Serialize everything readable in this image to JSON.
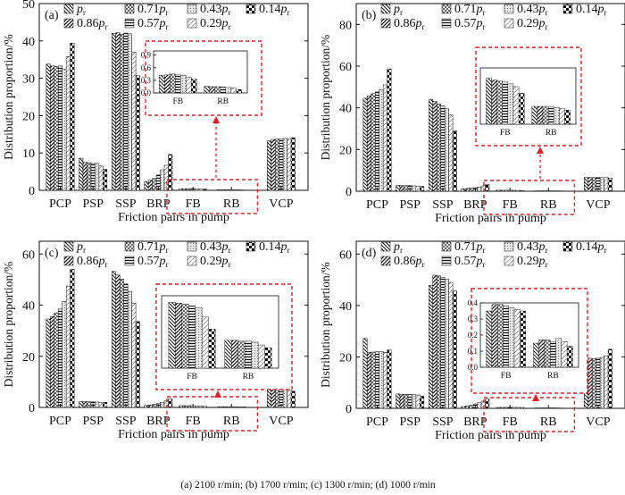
{
  "caption": "(a) 2100 r/min; (b) 1700 r/min; (c) 1300 r/min; (d) 1000 r/min",
  "legend": [
    {
      "key": "pr",
      "base": "p",
      "sub": "r",
      "coef": "",
      "pattern": "p0"
    },
    {
      "key": "0.86pr",
      "base": "p",
      "sub": "r",
      "coef": "0.86",
      "pattern": "p1"
    },
    {
      "key": "0.71pr",
      "base": "p",
      "sub": "r",
      "coef": "0.71",
      "pattern": "p2"
    },
    {
      "key": "0.57pr",
      "base": "p",
      "sub": "r",
      "coef": "0.57",
      "pattern": "p3"
    },
    {
      "key": "0.43pr",
      "base": "p",
      "sub": "r",
      "coef": "0.43",
      "pattern": "p4"
    },
    {
      "key": "0.29pr",
      "base": "p",
      "sub": "r",
      "coef": "0.29",
      "pattern": "p5"
    },
    {
      "key": "0.14pr",
      "base": "p",
      "sub": "r",
      "coef": "0.14",
      "pattern": "p6"
    }
  ],
  "chart_data": [
    {
      "panel": "(a)",
      "type": "bar",
      "xlabel": "Friction pairs in pump",
      "ylabel": "Distribution proportion/%",
      "ylim": [
        0,
        50
      ],
      "yticks": [
        0,
        10,
        20,
        30,
        40,
        50
      ],
      "categories": [
        "PCP",
        "PSP",
        "SSP",
        "BRP",
        "FB",
        "RB",
        "VCP"
      ],
      "highlight": [
        "FB",
        "RB"
      ],
      "series": [
        {
          "name": "pr",
          "values": [
            33.8,
            8.6,
            42.0,
            2.3,
            0.42,
            0.16,
            13.2
          ]
        },
        {
          "name": "0.86pr",
          "values": [
            33.3,
            7.5,
            42.2,
            2.7,
            0.43,
            0.15,
            13.6
          ]
        },
        {
          "name": "0.71pr",
          "values": [
            33.2,
            7.4,
            41.8,
            3.2,
            0.45,
            0.15,
            13.7
          ]
        },
        {
          "name": "0.57pr",
          "values": [
            33.3,
            7.2,
            42.1,
            4.1,
            0.43,
            0.14,
            13.8
          ]
        },
        {
          "name": "0.43pr",
          "values": [
            32.4,
            7.2,
            41.9,
            5.5,
            0.42,
            0.13,
            13.9
          ]
        },
        {
          "name": "0.29pr",
          "values": [
            35.8,
            6.5,
            37.0,
            6.7,
            0.37,
            0.12,
            13.7
          ]
        },
        {
          "name": "0.14pr",
          "values": [
            39.4,
            5.6,
            30.7,
            9.6,
            0.33,
            0.08,
            14.1
          ]
        }
      ],
      "inset": {
        "categories": [
          "FB",
          "RB"
        ],
        "ylim": [
          0,
          1.0
        ],
        "yticks": [
          "0.9",
          "0.6",
          "0.3",
          "0.0"
        ],
        "tickvals": [
          0.9,
          0.6,
          0.3,
          0.0
        ]
      }
    },
    {
      "panel": "(b)",
      "type": "bar",
      "xlabel": "Friction pairs in pump",
      "ylabel": "Distribution proportion/%",
      "ylim": [
        0,
        90
      ],
      "yticks": [
        0,
        20,
        40,
        60,
        80
      ],
      "categories": [
        "PCP",
        "PSP",
        "SSP",
        "BRP",
        "FB",
        "RB",
        "VCP"
      ],
      "highlight": [
        "FB",
        "RB"
      ],
      "series": [
        {
          "name": "pr",
          "values": [
            44.6,
            2.8,
            44.1,
            1.2,
            0.49,
            0.19,
            6.6
          ]
        },
        {
          "name": "0.86pr",
          "values": [
            45.8,
            2.7,
            43.1,
            1.3,
            0.47,
            0.19,
            6.6
          ]
        },
        {
          "name": "0.71pr",
          "values": [
            46.8,
            2.7,
            41.9,
            1.5,
            0.46,
            0.19,
            6.6
          ]
        },
        {
          "name": "0.57pr",
          "values": [
            47.6,
            2.7,
            40.9,
            1.7,
            0.45,
            0.19,
            6.6
          ]
        },
        {
          "name": "0.43pr",
          "values": [
            48.7,
            2.6,
            39.6,
            2.0,
            0.43,
            0.18,
            6.5
          ]
        },
        {
          "name": "0.29pr",
          "values": [
            51.0,
            2.5,
            36.6,
            2.6,
            0.4,
            0.17,
            6.5
          ]
        },
        {
          "name": "0.14pr",
          "values": [
            58.7,
            2.3,
            28.9,
            3.2,
            0.33,
            0.15,
            6.3
          ]
        }
      ],
      "inset": {
        "categories": [
          "FB",
          "RB"
        ],
        "ylim": [
          0,
          0.6
        ],
        "yticks": [],
        "tickvals": []
      }
    },
    {
      "panel": "(c)",
      "type": "bar",
      "xlabel": "Friction pairs in pump",
      "ylabel": "Distribution proportion/%",
      "ylim": [
        0,
        65
      ],
      "yticks": [
        0,
        20,
        40,
        60
      ],
      "categories": [
        "PCP",
        "PSP",
        "SSP",
        "BRP",
        "FB",
        "RB",
        "VCP"
      ],
      "highlight": [
        "FB",
        "RB"
      ],
      "series": [
        {
          "name": "pr",
          "values": [
            34.6,
            2.3,
            53.2,
            0.8,
            0.71,
            0.3,
            7.7
          ]
        },
        {
          "name": "0.86pr",
          "values": [
            35.6,
            2.3,
            51.8,
            1.0,
            0.7,
            0.3,
            7.6
          ]
        },
        {
          "name": "0.71pr",
          "values": [
            37.0,
            2.2,
            50.2,
            1.2,
            0.69,
            0.29,
            7.5
          ]
        },
        {
          "name": "0.57pr",
          "values": [
            38.5,
            2.2,
            48.3,
            1.6,
            0.67,
            0.29,
            7.4
          ]
        },
        {
          "name": "0.43pr",
          "values": [
            41.5,
            2.1,
            45.4,
            2.0,
            0.65,
            0.28,
            7.2
          ]
        },
        {
          "name": "0.29pr",
          "values": [
            47.5,
            2.0,
            40.8,
            2.6,
            0.55,
            0.25,
            7.0
          ]
        },
        {
          "name": "0.14pr",
          "values": [
            54.1,
            2.0,
            33.6,
            3.3,
            0.42,
            0.22,
            6.4
          ]
        }
      ],
      "inset": {
        "categories": [
          "FB",
          "RB"
        ],
        "ylim": [
          0,
          0.78
        ],
        "yticks": [],
        "tickvals": []
      }
    },
    {
      "panel": "(d)",
      "type": "bar",
      "xlabel": "Friction pairs in pump",
      "ylabel": "Distribution proportion/%",
      "ylim": [
        0,
        65
      ],
      "yticks": [
        0,
        20,
        40,
        60
      ],
      "categories": [
        "PCP",
        "PSP",
        "SSP",
        "BRP",
        "FB",
        "RB",
        "VCP"
      ],
      "highlight": [
        "FB",
        "RB"
      ],
      "series": [
        {
          "name": "pr",
          "values": [
            27.2,
            5.6,
            47.8,
            0.7,
            0.35,
            0.15,
            18.0
          ]
        },
        {
          "name": "0.86pr",
          "values": [
            21.8,
            5.5,
            51.8,
            0.9,
            0.39,
            0.17,
            19.5
          ]
        },
        {
          "name": "0.71pr",
          "values": [
            21.9,
            5.5,
            51.5,
            1.2,
            0.39,
            0.17,
            19.4
          ]
        },
        {
          "name": "0.57pr",
          "values": [
            22.0,
            5.4,
            51.0,
            1.7,
            0.38,
            0.16,
            19.5
          ]
        },
        {
          "name": "0.43pr",
          "values": [
            22.1,
            5.3,
            50.3,
            2.2,
            0.37,
            0.18,
            19.8
          ]
        },
        {
          "name": "0.29pr",
          "values": [
            21.8,
            5.2,
            49.0,
            2.8,
            0.36,
            0.16,
            20.4
          ]
        },
        {
          "name": "0.14pr",
          "values": [
            22.7,
            4.7,
            45.6,
            3.6,
            0.35,
            0.13,
            23.0
          ]
        }
      ],
      "inset": {
        "categories": [
          "FB",
          "RB"
        ],
        "ylim": [
          0,
          0.4
        ],
        "yticks": [
          "0.4",
          "0.3",
          "0.2",
          "0.1",
          "0.0"
        ],
        "tickvals": [
          0.4,
          0.3,
          0.2,
          0.1,
          0.0
        ]
      }
    }
  ]
}
